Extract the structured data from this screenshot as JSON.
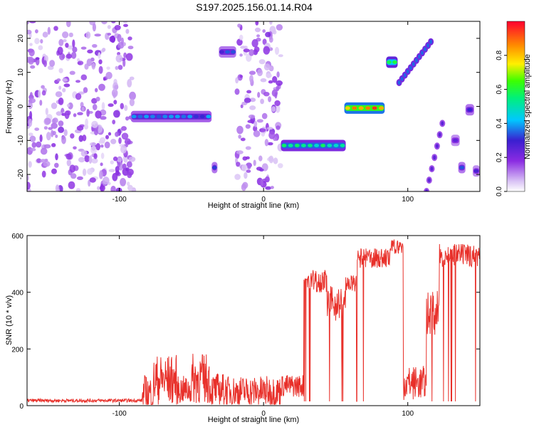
{
  "title": "S197.2025.156.01.14.R04",
  "colors": {
    "snr_line": "#e8302a",
    "background": "#ffffff"
  },
  "chart_data": [
    {
      "type": "heatmap",
      "title": "S197.2025.156.01.14.R04",
      "xlabel": "Height of straight line (km)",
      "ylabel": "Frequency (Hz)",
      "xlim": [
        -164,
        150
      ],
      "ylim": [
        -25,
        25
      ],
      "x_ticks": [
        -100,
        0,
        100
      ],
      "y_ticks": [
        -20,
        -10,
        0,
        10,
        20
      ],
      "colorbar": {
        "label": "Normalized spectral amplitude",
        "range": [
          0.0,
          1.0
        ],
        "ticks": [
          "0.0",
          "0.2",
          "0.4",
          "0.6",
          "0.8"
        ],
        "colormap": "rainbow (white→purple→blue→cyan→green→yellow→red)"
      },
      "features": [
        {
          "x_range": [
            -164,
            -90
          ],
          "freq_range": [
            -25,
            25
          ],
          "amplitude": 0.1
        },
        {
          "x_range": [
            -92,
            -36
          ],
          "freq_center": -3,
          "amplitude": 0.35
        },
        {
          "x_range": [
            -36,
            -32
          ],
          "freq_center": -18,
          "amplitude": 0.3
        },
        {
          "x_range": [
            -31,
            -19
          ],
          "freq_center": 16,
          "amplitude": 0.3
        },
        {
          "x_range": [
            -19,
            12
          ],
          "freq_range": [
            -25,
            25
          ],
          "amplitude": 0.1
        },
        {
          "x_range": [
            12,
            57
          ],
          "freq_center": -11.5,
          "amplitude": 0.5
        },
        {
          "x_range": [
            56,
            84
          ],
          "freq_center": -0.5,
          "amplitude": 0.9
        },
        {
          "x_range": [
            85,
            93
          ],
          "freq_center": 13,
          "amplitude": 0.6
        },
        {
          "x_range": [
            94,
            116
          ],
          "freq_range": [
            7,
            19
          ],
          "amplitude": 0.35
        },
        {
          "x_range": [
            113,
            124
          ],
          "freq_range": [
            -25,
            -5
          ],
          "amplitude": 0.25
        },
        {
          "x_range": [
            130,
            136
          ],
          "freq_center": -10,
          "amplitude": 0.25
        },
        {
          "x_range": [
            135,
            140
          ],
          "freq_center": -18,
          "amplitude": 0.3
        },
        {
          "x_range": [
            140,
            146
          ],
          "freq_center": -1,
          "amplitude": 0.3
        },
        {
          "x_range": [
            145,
            150
          ],
          "freq_center": -19,
          "amplitude": 0.25
        }
      ]
    },
    {
      "type": "line",
      "xlabel": "Height of straight line (km)",
      "ylabel": "SNR (10 * v/v)",
      "xlim": [
        -164,
        150
      ],
      "ylim": [
        0,
        600
      ],
      "x_ticks": [
        -100,
        0,
        100
      ],
      "y_ticks": [
        0,
        200,
        400,
        600
      ],
      "series": [
        {
          "color": "#e8302a",
          "segments": [
            {
              "x": [
                -164,
                -84
              ],
              "level": 18,
              "noise": 6
            },
            {
              "x": [
                -84,
                -76
              ],
              "level": 40,
              "noise": 70
            },
            {
              "x": [
                -76,
                -60
              ],
              "level": 90,
              "noise": 90
            },
            {
              "x": [
                -60,
                -50
              ],
              "level": 55,
              "noise": 50
            },
            {
              "x": [
                -50,
                -37
              ],
              "level": 95,
              "noise": 90
            },
            {
              "x": [
                -37,
                -25
              ],
              "level": 55,
              "noise": 60
            },
            {
              "x": [
                -25,
                12
              ],
              "level": 50,
              "noise": 55
            },
            {
              "x": [
                12,
                28
              ],
              "level": 70,
              "noise": 40
            },
            {
              "x": [
                28,
                44
              ],
              "level": 440,
              "noise": 40
            },
            {
              "x": [
                44,
                57
              ],
              "level": 360,
              "noise": 60
            },
            {
              "x": [
                57,
                65
              ],
              "level": 430,
              "noise": 30
            },
            {
              "x": [
                65,
                88
              ],
              "level": 520,
              "noise": 35
            },
            {
              "x": [
                88,
                97
              ],
              "level": 560,
              "noise": 25
            },
            {
              "x": [
                97,
                113
              ],
              "level": 80,
              "noise": 60
            },
            {
              "x": [
                113,
                122
              ],
              "level": 330,
              "noise": 80
            },
            {
              "x": [
                122,
                150
              ],
              "level": 530,
              "noise": 40
            }
          ]
        }
      ]
    }
  ]
}
